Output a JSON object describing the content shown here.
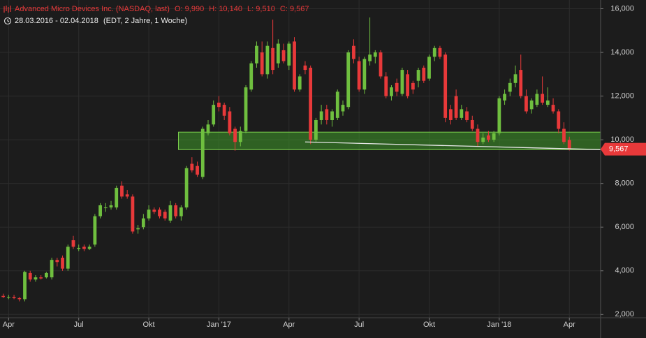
{
  "header": {
    "name": "Advanced Micro Devices Inc. (NASDAQ, last)",
    "ohlc": [
      {
        "key": "O:",
        "value": 9.99,
        "label": "9,990"
      },
      {
        "key": "H:",
        "value": 10.14,
        "label": "10,140"
      },
      {
        "key": "L:",
        "value": 9.51,
        "label": "9,510"
      },
      {
        "key": "C:",
        "value": 9.567,
        "label": "9,567"
      }
    ],
    "range": "28.03.2016 - 02.04.2018",
    "period": "(EDT, 2 Jahre, 1 Woche)"
  },
  "chart_data": {
    "type": "candlestick",
    "up_color": "#6fbf3f",
    "down_color": "#e8393a",
    "xlim": [
      -0.6,
      110.8
    ],
    "ylim": [
      1.85,
      16.4
    ],
    "yticks": [
      {
        "value": 2,
        "label": "2,000"
      },
      {
        "value": 4,
        "label": "4,000"
      },
      {
        "value": 6,
        "label": "6,000"
      },
      {
        "value": 8,
        "label": "8,000"
      },
      {
        "value": 10,
        "label": "10,000"
      },
      {
        "value": 12,
        "label": "12,000"
      },
      {
        "value": 14,
        "label": "14,000"
      },
      {
        "value": 16,
        "label": "16,000"
      }
    ],
    "xticks": [
      {
        "value": 1,
        "label": "Apr"
      },
      {
        "value": 14,
        "label": "Jul"
      },
      {
        "value": 27,
        "label": "Okt"
      },
      {
        "value": 40,
        "label": "Jan '17"
      },
      {
        "value": 53,
        "label": "Apr"
      },
      {
        "value": 66,
        "label": "Jul"
      },
      {
        "value": 79,
        "label": "Okt"
      },
      {
        "value": 92,
        "label": "Jan '18"
      },
      {
        "value": 105,
        "label": "Apr"
      }
    ],
    "grid": true,
    "zone": {
      "x_start": 32.5,
      "low": 9.55,
      "high": 10.35,
      "color": "#3f9a2a"
    },
    "trendline": {
      "x": [
        56,
        110.8
      ],
      "y": [
        9.9,
        9.55
      ],
      "color": "#e6e6e6"
    },
    "last_price": {
      "value": 9.567,
      "label": "9,567"
    },
    "ohlc": [
      [
        2.85,
        2.95,
        2.75,
        2.8
      ],
      [
        2.8,
        2.9,
        2.7,
        2.8
      ],
      [
        2.8,
        2.9,
        2.7,
        2.75
      ],
      [
        2.75,
        2.8,
        2.6,
        2.7
      ],
      [
        2.7,
        4.0,
        2.6,
        3.95
      ],
      [
        3.9,
        4.0,
        3.5,
        3.6
      ],
      [
        3.6,
        3.8,
        3.5,
        3.7
      ],
      [
        3.7,
        3.8,
        3.6,
        3.65
      ],
      [
        3.7,
        3.95,
        3.65,
        3.9
      ],
      [
        3.7,
        4.6,
        3.6,
        4.5
      ],
      [
        4.5,
        4.6,
        4.2,
        4.4
      ],
      [
        4.6,
        4.7,
        4.0,
        4.1
      ],
      [
        4.1,
        5.2,
        4.0,
        5.1
      ],
      [
        5.4,
        5.6,
        5.0,
        5.1
      ],
      [
        5.0,
        5.2,
        4.9,
        5.05
      ],
      [
        5.1,
        5.2,
        4.9,
        5.0
      ],
      [
        5.0,
        5.2,
        4.95,
        5.1
      ],
      [
        5.2,
        6.6,
        5.1,
        6.5
      ],
      [
        6.5,
        7.1,
        6.4,
        7.0
      ],
      [
        6.9,
        7.1,
        6.7,
        6.9
      ],
      [
        6.9,
        7.2,
        6.8,
        7.0
      ],
      [
        6.9,
        7.9,
        6.8,
        7.8
      ],
      [
        7.9,
        8.1,
        7.3,
        7.4
      ],
      [
        7.5,
        7.7,
        7.3,
        7.4
      ],
      [
        7.4,
        7.5,
        5.7,
        5.8
      ],
      [
        5.9,
        6.1,
        5.7,
        5.95
      ],
      [
        6.0,
        6.6,
        5.9,
        6.4
      ],
      [
        6.4,
        7.0,
        6.3,
        6.8
      ],
      [
        6.8,
        6.9,
        6.6,
        6.7
      ],
      [
        6.8,
        6.9,
        6.4,
        6.5
      ],
      [
        6.7,
        6.8,
        6.3,
        6.4
      ],
      [
        6.3,
        7.2,
        6.2,
        7.0
      ],
      [
        7.0,
        7.1,
        6.4,
        6.5
      ],
      [
        6.5,
        7.0,
        6.3,
        6.9
      ],
      [
        6.9,
        8.8,
        6.8,
        8.7
      ],
      [
        8.9,
        9.2,
        8.5,
        8.6
      ],
      [
        8.8,
        9.0,
        8.3,
        8.4
      ],
      [
        8.3,
        10.6,
        8.2,
        10.5
      ],
      [
        10.3,
        10.9,
        10.2,
        10.7
      ],
      [
        10.7,
        11.8,
        10.6,
        11.6
      ],
      [
        11.7,
        12.0,
        11.3,
        11.5
      ],
      [
        11.6,
        11.7,
        10.9,
        11.1
      ],
      [
        11.3,
        11.5,
        10.2,
        10.3
      ],
      [
        10.5,
        10.6,
        9.5,
        9.9
      ],
      [
        9.9,
        10.6,
        9.7,
        10.4
      ],
      [
        10.4,
        12.5,
        10.3,
        12.4
      ],
      [
        12.3,
        13.6,
        12.2,
        13.5
      ],
      [
        13.5,
        14.5,
        13.3,
        14.3
      ],
      [
        14.0,
        14.5,
        12.9,
        13.0
      ],
      [
        13.0,
        14.5,
        12.8,
        14.3
      ],
      [
        14.2,
        15.5,
        13.0,
        13.2
      ],
      [
        13.5,
        14.6,
        13.3,
        14.4
      ],
      [
        14.1,
        14.4,
        13.5,
        13.6
      ],
      [
        13.4,
        14.5,
        13.2,
        14.4
      ],
      [
        14.5,
        14.7,
        12.2,
        12.3
      ],
      [
        12.3,
        13.0,
        12.2,
        12.9
      ],
      [
        13.4,
        13.6,
        13.0,
        13.2
      ],
      [
        13.3,
        13.4,
        9.8,
        10.0
      ],
      [
        10.0,
        11.0,
        9.9,
        10.9
      ],
      [
        10.9,
        11.6,
        10.7,
        11.3
      ],
      [
        11.4,
        11.6,
        10.7,
        10.9
      ],
      [
        10.9,
        11.4,
        10.6,
        11.3
      ],
      [
        11.0,
        12.3,
        10.9,
        12.2
      ],
      [
        11.3,
        11.8,
        11.1,
        11.6
      ],
      [
        11.5,
        14.1,
        11.4,
        14.0
      ],
      [
        14.3,
        14.6,
        13.5,
        13.7
      ],
      [
        13.6,
        13.8,
        12.2,
        12.3
      ],
      [
        12.3,
        13.8,
        12.1,
        13.7
      ],
      [
        13.6,
        15.6,
        13.4,
        13.9
      ],
      [
        13.8,
        14.1,
        13.5,
        14.0
      ],
      [
        14.0,
        14.1,
        12.8,
        12.9
      ],
      [
        12.9,
        13.1,
        11.9,
        12.0
      ],
      [
        12.0,
        12.5,
        11.8,
        12.4
      ],
      [
        12.6,
        12.8,
        12.0,
        12.2
      ],
      [
        12.1,
        13.3,
        12.0,
        13.2
      ],
      [
        13.0,
        13.2,
        11.9,
        12.0
      ],
      [
        12.6,
        12.7,
        12.1,
        12.3
      ],
      [
        12.7,
        13.3,
        12.4,
        13.2
      ],
      [
        13.3,
        13.4,
        12.6,
        12.7
      ],
      [
        12.8,
        13.9,
        12.7,
        13.8
      ],
      [
        13.8,
        14.3,
        13.6,
        14.2
      ],
      [
        14.2,
        14.3,
        13.7,
        13.8
      ],
      [
        13.9,
        14.0,
        10.8,
        11.0
      ],
      [
        11.4,
        11.6,
        10.7,
        10.9
      ],
      [
        12.0,
        12.3,
        10.9,
        11.0
      ],
      [
        11.0,
        11.6,
        10.9,
        11.4
      ],
      [
        11.3,
        11.5,
        10.8,
        10.9
      ],
      [
        10.9,
        11.1,
        10.4,
        10.5
      ],
      [
        10.5,
        10.7,
        9.7,
        9.9
      ],
      [
        9.9,
        10.3,
        9.8,
        10.1
      ],
      [
        10.2,
        10.4,
        9.9,
        10.0
      ],
      [
        10.0,
        10.4,
        9.9,
        10.3
      ],
      [
        10.3,
        12.0,
        10.2,
        11.9
      ],
      [
        11.8,
        12.3,
        11.6,
        12.1
      ],
      [
        12.2,
        12.8,
        12.0,
        12.6
      ],
      [
        12.6,
        13.4,
        12.4,
        13.0
      ],
      [
        13.2,
        13.9,
        11.9,
        12.0
      ],
      [
        12.0,
        12.3,
        11.2,
        11.3
      ],
      [
        11.4,
        11.9,
        11.2,
        11.8
      ],
      [
        11.6,
        12.3,
        11.5,
        12.1
      ],
      [
        12.1,
        12.9,
        11.6,
        11.7
      ],
      [
        11.6,
        12.4,
        11.5,
        11.8
      ],
      [
        11.6,
        11.9,
        11.2,
        11.3
      ],
      [
        11.3,
        11.4,
        10.3,
        10.5
      ],
      [
        10.5,
        10.8,
        9.8,
        9.9
      ],
      [
        9.99,
        10.14,
        9.51,
        9.567
      ]
    ]
  }
}
